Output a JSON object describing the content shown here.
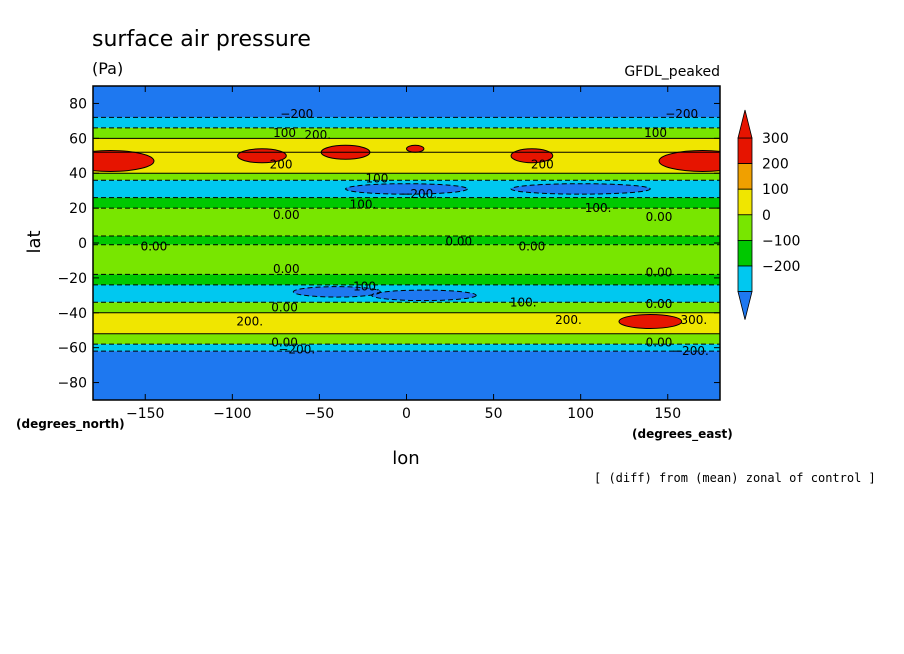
{
  "chart_data": {
    "type": "heatmap",
    "title": "surface air pressure",
    "units": "(Pa)",
    "model_label": "GFDL_peaked",
    "xlabel": "lon",
    "ylabel": "lat",
    "x_units_label": "(degrees_east)",
    "y_units_label": "(degrees_north)",
    "footnote": "[ (diff) from (mean) zonal of control ]",
    "xlim": [
      -180,
      180
    ],
    "ylim": [
      -90,
      90
    ],
    "x_ticks": [
      -150,
      -100,
      -50,
      0,
      50,
      100,
      150
    ],
    "x_tick_labels": [
      "−150",
      "−100",
      "−50",
      "0",
      "50",
      "100",
      "150"
    ],
    "y_ticks": [
      80,
      60,
      40,
      20,
      0,
      -20,
      -40,
      -60,
      -80
    ],
    "y_tick_labels": [
      "80",
      "60",
      "40",
      "20",
      "0",
      "−20",
      "−40",
      "−60",
      "−80"
    ],
    "colorbar": {
      "levels": [
        -300,
        -200,
        -100,
        0,
        100,
        200,
        300
      ],
      "colors": [
        "#1e78f0",
        "#00c8f0",
        "#00c800",
        "#78e600",
        "#f0e600",
        "#f0a000",
        "#e61400"
      ],
      "tick_values": [
        300,
        200,
        100,
        0,
        -100,
        -200
      ],
      "tick_labels": [
        "300",
        "200",
        "100",
        "0",
        "−100",
        "−200"
      ]
    },
    "zonal_bands": [
      {
        "lat": [
          72,
          90
        ],
        "value": -250
      },
      {
        "lat": [
          66,
          72
        ],
        "value": -120
      },
      {
        "lat": [
          60,
          66
        ],
        "value": 50
      },
      {
        "lat": [
          52,
          60
        ],
        "value": 150
      },
      {
        "lat": [
          40,
          52
        ],
        "value": 190
      },
      {
        "lat": [
          36,
          40
        ],
        "value": 40
      },
      {
        "lat": [
          26,
          36
        ],
        "value": -150
      },
      {
        "lat": [
          20,
          26
        ],
        "value": -60
      },
      {
        "lat": [
          4,
          20
        ],
        "value": 30
      },
      {
        "lat": [
          -1,
          4
        ],
        "value": -60
      },
      {
        "lat": [
          -18,
          -1
        ],
        "value": 30
      },
      {
        "lat": [
          -24,
          -18
        ],
        "value": -60
      },
      {
        "lat": [
          -34,
          -24
        ],
        "value": -150
      },
      {
        "lat": [
          -40,
          -34
        ],
        "value": 40
      },
      {
        "lat": [
          -52,
          -40
        ],
        "value": 170
      },
      {
        "lat": [
          -58,
          -52
        ],
        "value": 50
      },
      {
        "lat": [
          -62,
          -58
        ],
        "value": -120
      },
      {
        "lat": [
          -90,
          -62
        ],
        "value": -250
      }
    ],
    "anomalies": [
      {
        "lon": -170,
        "lat": 47,
        "rlon": 25,
        "rlat": 6,
        "value": 320
      },
      {
        "lon": 170,
        "lat": 47,
        "rlon": 25,
        "rlat": 6,
        "value": 320
      },
      {
        "lon": -83,
        "lat": 50,
        "rlon": 14,
        "rlat": 4,
        "value": 310
      },
      {
        "lon": -35,
        "lat": 52,
        "rlon": 14,
        "rlat": 4,
        "value": 310
      },
      {
        "lon": 72,
        "lat": 50,
        "rlon": 12,
        "rlat": 4,
        "value": 310
      },
      {
        "lon": 5,
        "lat": 54,
        "rlon": 5,
        "rlat": 2,
        "value": 310
      },
      {
        "lon": 140,
        "lat": -45,
        "rlon": 18,
        "rlat": 4,
        "value": 310
      },
      {
        "lon": 0,
        "lat": 31,
        "rlon": 35,
        "rlat": 3,
        "value": -230
      },
      {
        "lon": 100,
        "lat": 31,
        "rlon": 40,
        "rlat": 3,
        "value": -230
      },
      {
        "lon": 10,
        "lat": -30,
        "rlon": 30,
        "rlat": 3,
        "value": -230
      },
      {
        "lon": -40,
        "lat": -28,
        "rlon": 25,
        "rlat": 3,
        "value": -230
      }
    ],
    "contour_labels": [
      {
        "text": "−200",
        "lon": -63,
        "lat": 74
      },
      {
        "text": "100",
        "lon": -70,
        "lat": 63
      },
      {
        "text": "200.",
        "lon": -51,
        "lat": 62
      },
      {
        "text": "−200",
        "lon": 158,
        "lat": 74
      },
      {
        "text": "100",
        "lon": 143,
        "lat": 63
      },
      {
        "text": "200",
        "lon": 78,
        "lat": 45
      },
      {
        "text": "200",
        "lon": -72,
        "lat": 45
      },
      {
        "text": "100",
        "lon": -17,
        "lat": 37
      },
      {
        "text": "−200.",
        "lon": 7,
        "lat": 28
      },
      {
        "text": "100.",
        "lon": -25,
        "lat": 22
      },
      {
        "text": "100.",
        "lon": 110,
        "lat": 20
      },
      {
        "text": "0.00",
        "lon": -69,
        "lat": 16
      },
      {
        "text": "0.00",
        "lon": 145,
        "lat": 15
      },
      {
        "text": "0.00",
        "lon": -145,
        "lat": -2
      },
      {
        "text": "0.00",
        "lon": 30,
        "lat": 1
      },
      {
        "text": "0.00",
        "lon": 72,
        "lat": -2
      },
      {
        "text": "0.00",
        "lon": -69,
        "lat": -15
      },
      {
        "text": "0.00",
        "lon": 145,
        "lat": -17
      },
      {
        "text": "100.",
        "lon": -23,
        "lat": -25
      },
      {
        "text": "100.",
        "lon": 67,
        "lat": -34
      },
      {
        "text": "0.00",
        "lon": -70,
        "lat": -37
      },
      {
        "text": "200.",
        "lon": -90,
        "lat": -45
      },
      {
        "text": "200.",
        "lon": 93,
        "lat": -44
      },
      {
        "text": "0.00",
        "lon": 145,
        "lat": -35
      },
      {
        "text": "300.",
        "lon": 165,
        "lat": -44
      },
      {
        "text": "0.00",
        "lon": -70,
        "lat": -57
      },
      {
        "text": "0.00",
        "lon": 145,
        "lat": -57
      },
      {
        "text": "−200.",
        "lon": -63,
        "lat": -61
      },
      {
        "text": "−200.",
        "lon": 163,
        "lat": -62
      }
    ]
  }
}
